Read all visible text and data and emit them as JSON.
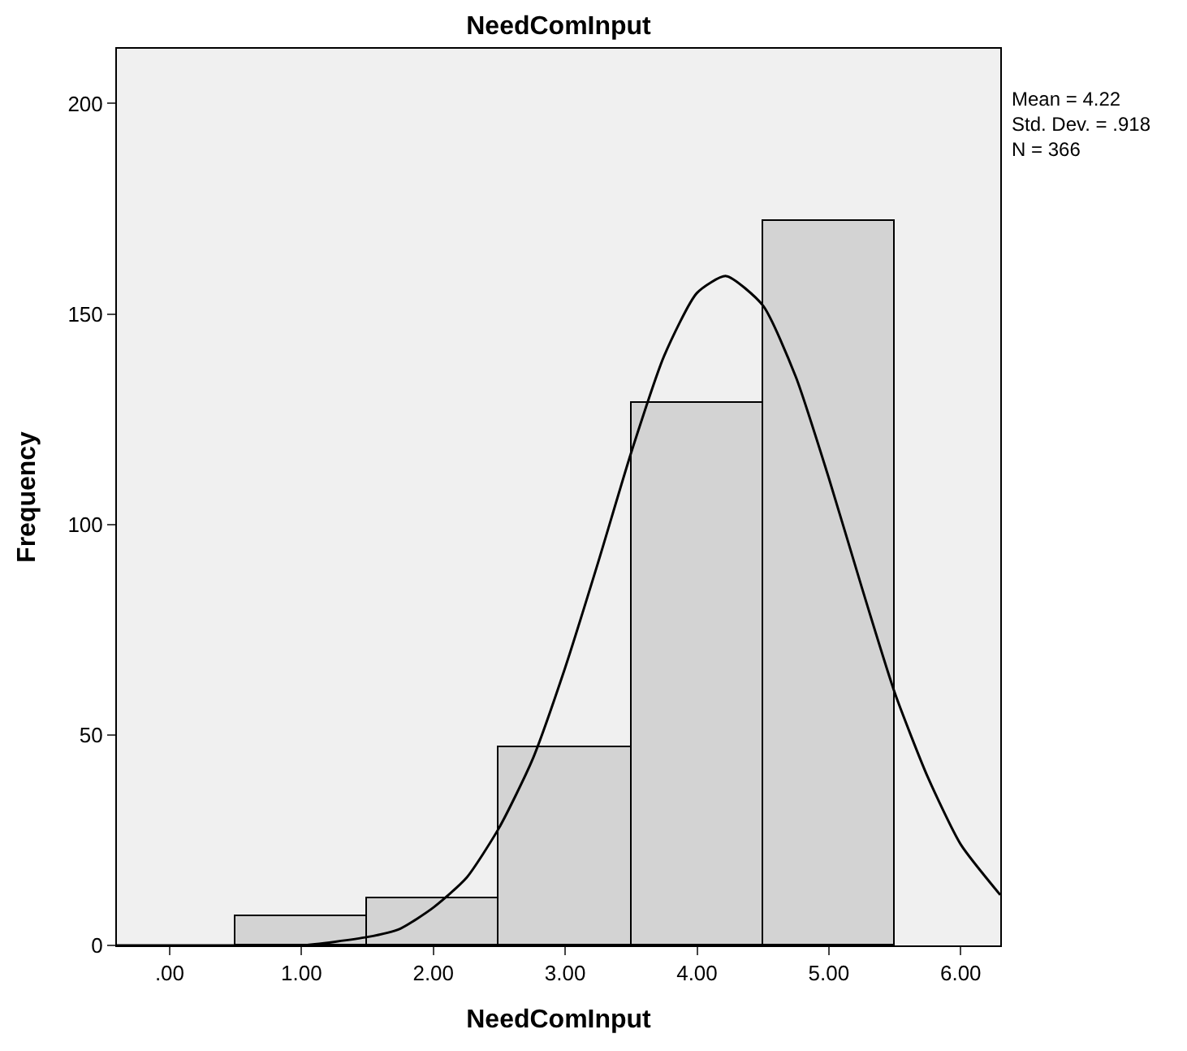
{
  "chart_data": {
    "type": "histogram",
    "title": "NeedComInput",
    "xlabel": "NeedComInput",
    "ylabel": "Frequency",
    "bins": [
      0.5,
      1.5,
      2.5,
      3.5,
      4.5,
      5.5
    ],
    "values": [
      7,
      11,
      47,
      129,
      172
    ],
    "color": "#d3d3d3",
    "series": [
      {
        "type": "line",
        "color": "#000000",
        "x": [
          -0.4,
          0,
          0.5,
          1.0,
          1.5,
          1.75,
          2.0,
          2.25,
          2.5,
          2.75,
          3.0,
          3.25,
          3.5,
          3.75,
          4.0,
          4.22,
          4.5,
          4.75,
          5.0,
          5.25,
          5.5,
          5.75,
          6.0,
          6.3
        ],
        "values": [
          0,
          0,
          0,
          0,
          2,
          4,
          9,
          16,
          28,
          44,
          66,
          91,
          117,
          140,
          155,
          159,
          152,
          135,
          111,
          85,
          60,
          40,
          24,
          12
        ]
      }
    ],
    "xlim": [
      -0.4,
      6.3
    ],
    "ylim": [
      0,
      213
    ],
    "xticks": [
      {
        "value": 0,
        "label": ".00"
      },
      {
        "value": 1,
        "label": "1.00"
      },
      {
        "value": 2,
        "label": "2.00"
      },
      {
        "value": 3,
        "label": "3.00"
      },
      {
        "value": 4,
        "label": "4.00"
      },
      {
        "value": 5,
        "label": "5.00"
      },
      {
        "value": 6,
        "label": "6.00"
      }
    ],
    "yticks": [
      0,
      50,
      100,
      150,
      200
    ],
    "annotations": [
      "Mean = 4.22\nStd. Dev. = .918\nN = 366"
    ],
    "grid": false
  }
}
